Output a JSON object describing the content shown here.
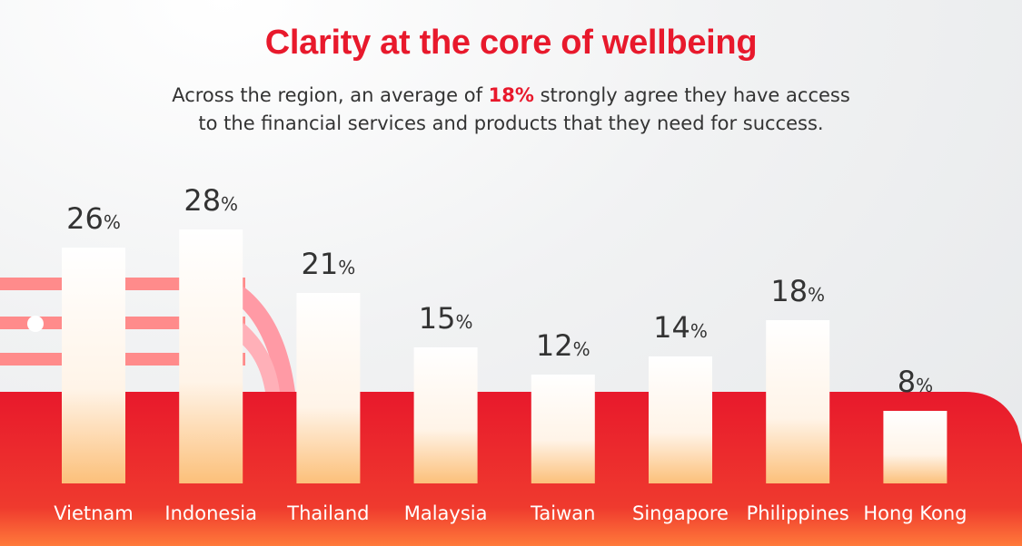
{
  "title": "Clarity at the core of wellbeing",
  "subtitle": {
    "line1_pre": "Across the region, an average of ",
    "line1_highlight": "18%",
    "line1_post": " strongly agree they have access",
    "line2": "to the financial services and products that they need for success."
  },
  "colors": {
    "accent": "#e8192c",
    "bar_top": "#ffffff",
    "bar_bottom": "#fcc07a",
    "text": "#333333"
  },
  "chart_data": {
    "type": "bar",
    "categories": [
      "Vietnam",
      "Indonesia",
      "Thailand",
      "Malaysia",
      "Taiwan",
      "Singapore",
      "Philippines",
      "Hong Kong"
    ],
    "values": [
      26,
      28,
      21,
      15,
      12,
      14,
      18,
      8
    ],
    "unit": "%",
    "title": "Clarity at the core of wellbeing",
    "ylim": [
      0,
      30
    ],
    "grid": false,
    "legend": "none"
  }
}
